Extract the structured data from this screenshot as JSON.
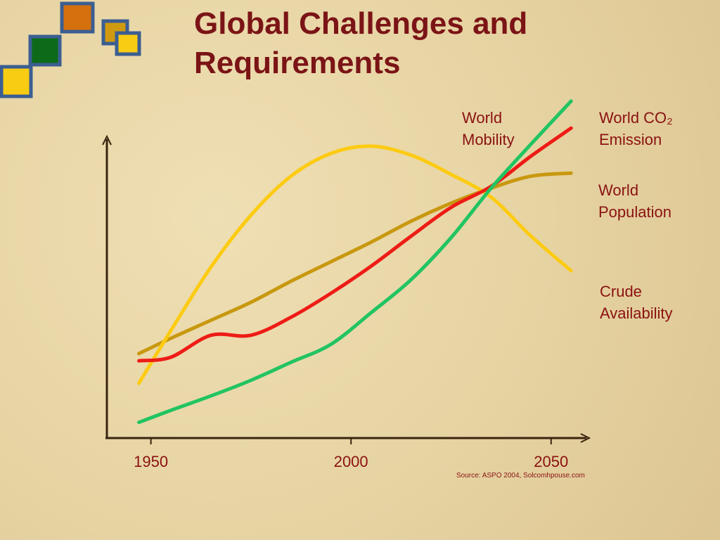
{
  "chart_data": {
    "type": "line",
    "title": "Global Challenges and Requirements",
    "source": "Source: ASPO 2004, Solcomhpouse.com",
    "x": [
      1947,
      1955,
      1965,
      1975,
      1985,
      1995,
      2005,
      2015,
      2025,
      2035,
      2045,
      2055
    ],
    "xlim": [
      1939,
      2059
    ],
    "xticks": [
      1950,
      2000,
      2050
    ],
    "ylim": [
      0,
      115
    ],
    "series": [
      {
        "name": "World Population",
        "color": "#c8980f",
        "values": [
          27.9,
          33,
          39,
          45,
          52,
          58.5,
          65,
          72,
          78,
          83,
          87,
          88
        ]
      },
      {
        "name": "Crude Availability",
        "color": "#fccb12",
        "values": [
          18,
          35.6,
          56.7,
          74,
          87,
          94.6,
          97,
          94,
          87.6,
          80,
          67,
          55.5
        ]
      },
      {
        "name": "World CO₂ Emission",
        "color": "#ee1c16",
        "values": [
          25.5,
          26.7,
          34,
          34,
          40,
          48,
          57,
          67,
          76.6,
          83.6,
          93.7,
          103
        ]
      },
      {
        "name": "World Mobility",
        "color": "#22c462",
        "values": [
          5,
          9,
          13.8,
          19,
          25,
          31,
          41.5,
          52.5,
          66.5,
          83,
          97.7,
          112
        ]
      }
    ]
  }
}
